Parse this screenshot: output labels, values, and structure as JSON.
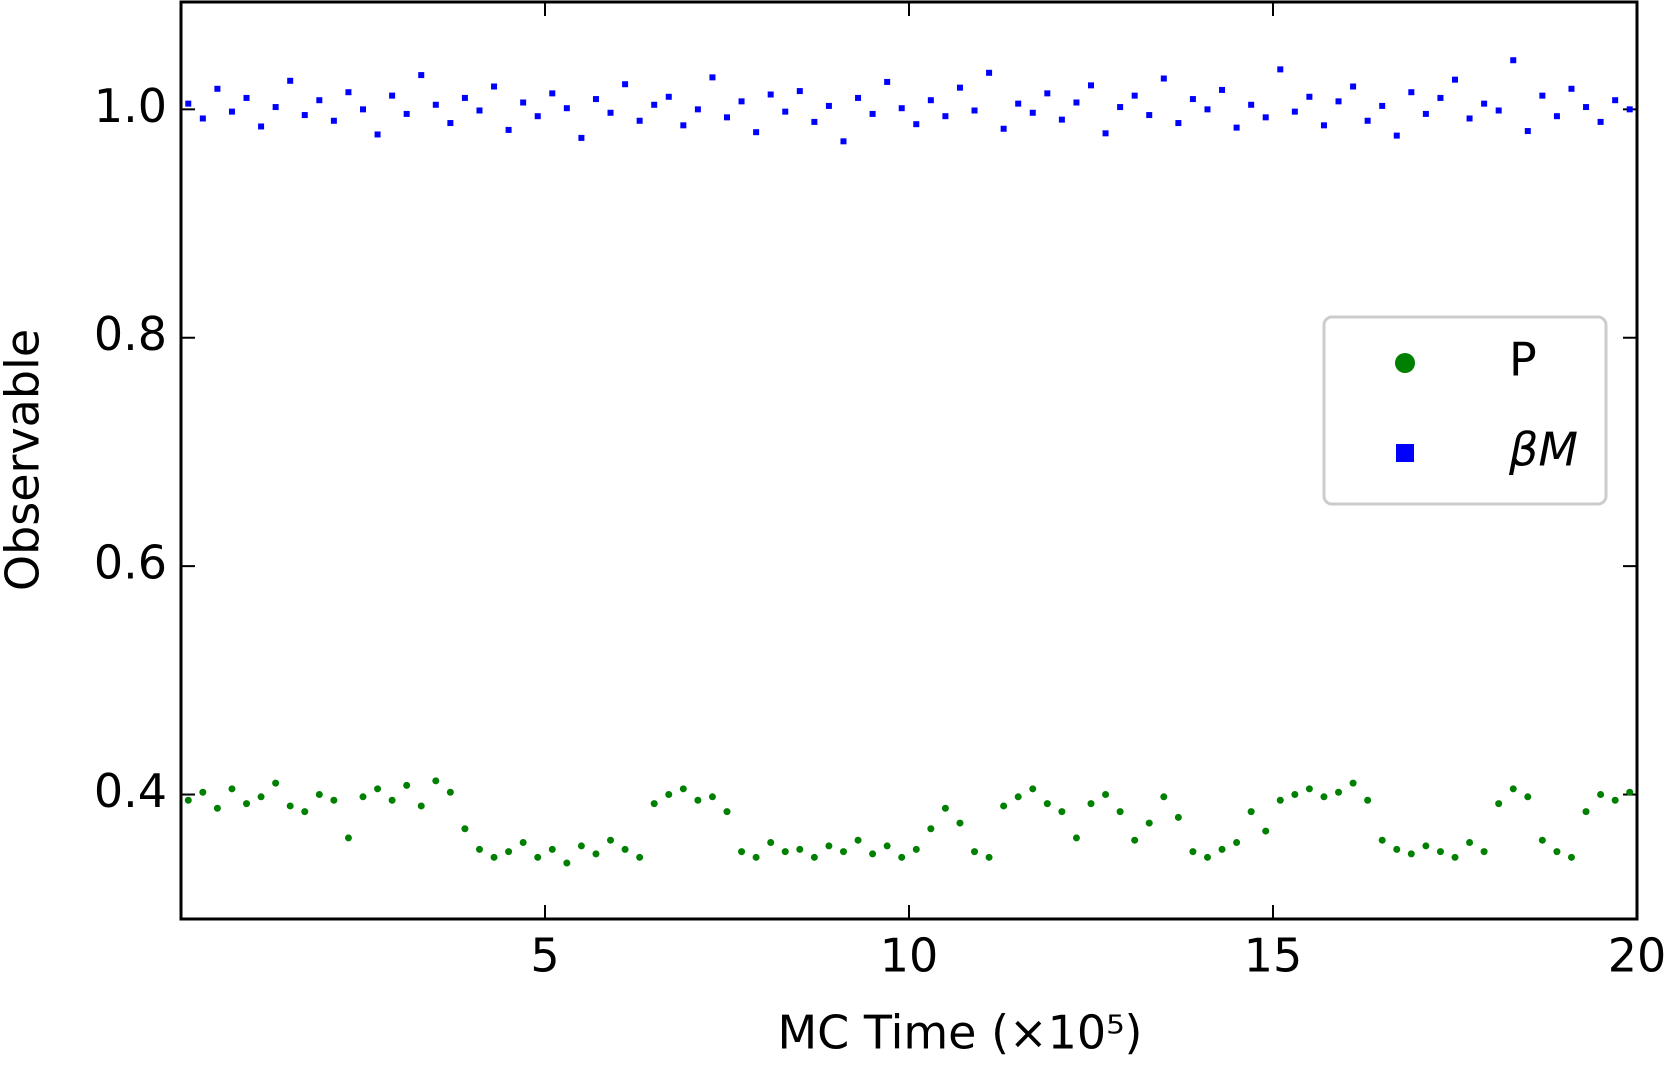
{
  "chart_data": {
    "type": "scatter",
    "x_label": "MC Time (×10⁵)",
    "y_label": "Observable",
    "xlim": [
      0,
      20
    ],
    "ylim": [
      0.291,
      1.094
    ],
    "xticks": [
      5,
      10,
      15,
      20
    ],
    "yticks": [
      0.4,
      0.6,
      0.8,
      {
        "value": 1,
        "label": "1.0"
      }
    ],
    "legend": "center right",
    "x": [
      0.1,
      0.3,
      0.5,
      0.7,
      0.9,
      1.1,
      1.3,
      1.5,
      1.7,
      1.9,
      2.1,
      2.3,
      2.5,
      2.7,
      2.9,
      3.1,
      3.3,
      3.5,
      3.7,
      3.9,
      4.1,
      4.3,
      4.5,
      4.7,
      4.9,
      5.1,
      5.3,
      5.5,
      5.7,
      5.9,
      6.1,
      6.3,
      6.5,
      6.7,
      6.9,
      7.1,
      7.3,
      7.5,
      7.7,
      7.9,
      8.1,
      8.3,
      8.5,
      8.7,
      8.9,
      9.1,
      9.3,
      9.5,
      9.7,
      9.9,
      10.1,
      10.3,
      10.5,
      10.7,
      10.9,
      11.1,
      11.3,
      11.5,
      11.7,
      11.9,
      12.1,
      12.3,
      12.5,
      12.7,
      12.9,
      13.1,
      13.3,
      13.5,
      13.7,
      13.9,
      14.1,
      14.3,
      14.5,
      14.7,
      14.9,
      15.1,
      15.3,
      15.5,
      15.7,
      15.9,
      16.1,
      16.3,
      16.5,
      16.7,
      16.9,
      17.1,
      17.3,
      17.5,
      17.7,
      17.9,
      18.1,
      18.3,
      18.5,
      18.7,
      18.9,
      19.1,
      19.3,
      19.5,
      19.7,
      19.9
    ],
    "series": [
      {
        "name": "P",
        "color": "#008000",
        "marker": "circle",
        "values": [
          0.395,
          0.402,
          0.388,
          0.405,
          0.392,
          0.398,
          0.41,
          0.39,
          0.385,
          0.4,
          0.395,
          0.362,
          0.398,
          0.405,
          0.395,
          0.408,
          0.39,
          0.412,
          0.402,
          0.37,
          0.352,
          0.345,
          0.35,
          0.358,
          0.345,
          0.352,
          0.34,
          0.355,
          0.348,
          0.36,
          0.352,
          0.345,
          0.392,
          0.4,
          0.405,
          0.395,
          0.398,
          0.385,
          0.35,
          0.345,
          0.358,
          0.35,
          0.352,
          0.345,
          0.355,
          0.35,
          0.36,
          0.348,
          0.355,
          0.345,
          0.352,
          0.37,
          0.388,
          0.375,
          0.35,
          0.345,
          0.39,
          0.398,
          0.405,
          0.392,
          0.385,
          0.362,
          0.392,
          0.4,
          0.385,
          0.36,
          0.375,
          0.398,
          0.38,
          0.35,
          0.345,
          0.352,
          0.358,
          0.385,
          0.368,
          0.395,
          0.4,
          0.405,
          0.398,
          0.402,
          0.41,
          0.395,
          0.36,
          0.352,
          0.348,
          0.355,
          0.35,
          0.345,
          0.358,
          0.35,
          0.392,
          0.405,
          0.398,
          0.36,
          0.35,
          0.345,
          0.385,
          0.4,
          0.395,
          0.402
        ]
      },
      {
        "name": "βM",
        "color": "#0000ff",
        "marker": "square",
        "values": [
          1.005,
          0.992,
          1.018,
          0.998,
          1.01,
          0.985,
          1.002,
          1.025,
          0.995,
          1.008,
          0.99,
          1.015,
          1.0,
          0.978,
          1.012,
          0.996,
          1.03,
          1.004,
          0.988,
          1.01,
          0.999,
          1.02,
          0.982,
          1.006,
          0.994,
          1.014,
          1.001,
          0.975,
          1.009,
          0.997,
          1.022,
          0.99,
          1.004,
          1.011,
          0.986,
          1.0,
          1.028,
          0.993,
          1.007,
          0.98,
          1.013,
          0.998,
          1.016,
          0.989,
          1.003,
          0.972,
          1.01,
          0.996,
          1.024,
          1.001,
          0.987,
          1.008,
          0.994,
          1.019,
          0.999,
          1.032,
          0.983,
          1.005,
          0.997,
          1.014,
          0.991,
          1.006,
          1.021,
          0.979,
          1.002,
          1.012,
          0.995,
          1.027,
          0.988,
          1.009,
          1.0,
          1.017,
          0.984,
          1.004,
          0.993,
          1.035,
          0.998,
          1.011,
          0.986,
          1.007,
          1.02,
          0.99,
          1.003,
          0.977,
          1.015,
          0.996,
          1.01,
          1.026,
          0.992,
          1.005,
          0.999,
          1.043,
          0.981,
          1.012,
          0.994,
          1.018,
          1.002,
          0.989,
          1.008,
          1.0
        ]
      }
    ]
  }
}
